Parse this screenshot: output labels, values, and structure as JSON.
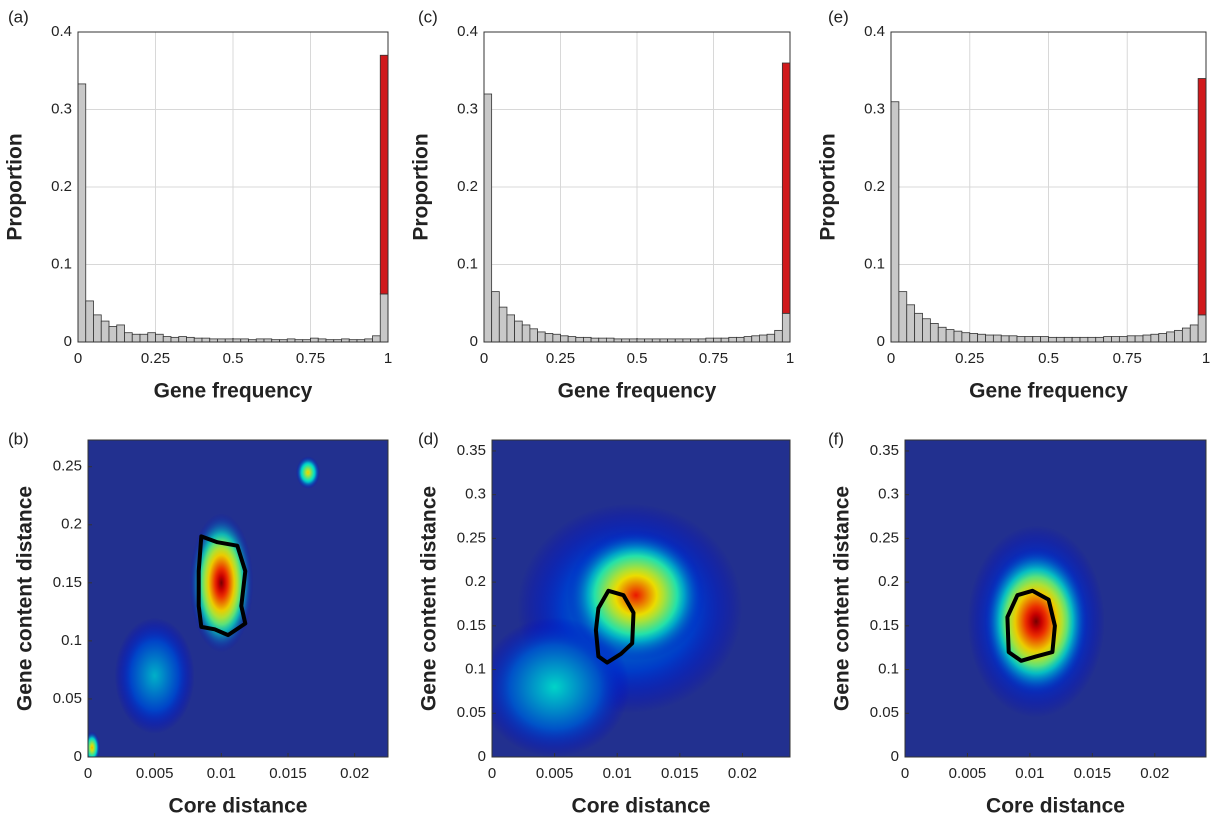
{
  "chart_data": [
    {
      "type": "histogram",
      "label": "(a)",
      "xlabel": "Gene frequency",
      "ylabel": "Proportion",
      "bins": [
        0,
        0.025,
        0.05,
        0.075,
        0.1,
        0.125,
        0.15,
        0.175,
        0.2,
        0.225,
        0.25,
        0.275,
        0.3,
        0.325,
        0.35,
        0.375,
        0.4,
        0.425,
        0.45,
        0.475,
        0.5,
        0.525,
        0.55,
        0.575,
        0.6,
        0.625,
        0.65,
        0.675,
        0.7,
        0.725,
        0.75,
        0.775,
        0.8,
        0.825,
        0.85,
        0.875,
        0.9,
        0.925,
        0.95,
        0.975,
        1
      ],
      "series": [
        {
          "color": "#c8c8c8",
          "values": [
            0.333,
            0.053,
            0.035,
            0.027,
            0.02,
            0.022,
            0.012,
            0.01,
            0.01,
            0.012,
            0.01,
            0.007,
            0.006,
            0.007,
            0.006,
            0.005,
            0.005,
            0.004,
            0.004,
            0.004,
            0.004,
            0.004,
            0.003,
            0.004,
            0.004,
            0.003,
            0.003,
            0.004,
            0.003,
            0.003,
            0.005,
            0.004,
            0.003,
            0.003,
            0.004,
            0.003,
            0.003,
            0.004,
            0.008,
            0.062
          ]
        },
        {
          "color": "#d0191c",
          "values": [
            0,
            0,
            0,
            0,
            0,
            0,
            0,
            0,
            0,
            0,
            0,
            0,
            0,
            0,
            0,
            0,
            0,
            0,
            0,
            0,
            0,
            0,
            0,
            0,
            0,
            0,
            0,
            0,
            0,
            0,
            0,
            0,
            0,
            0,
            0,
            0,
            0,
            0,
            0,
            0.308
          ]
        }
      ],
      "xlim": [
        0,
        1
      ],
      "ylim": [
        0,
        0.4
      ],
      "xticks": [
        0,
        0.25,
        0.5,
        0.75,
        1
      ],
      "yticks": [
        0,
        0.1,
        0.2,
        0.3,
        0.4
      ],
      "grid": true
    },
    {
      "type": "heatmap",
      "label": "(b)",
      "xlabel": "Core distance",
      "ylabel": "Gene content distance",
      "background": "#22308f",
      "peaks": [
        {
          "x": 0.005,
          "y": 0.07,
          "rx": 0.003,
          "ry": 0.05,
          "level": 0.32
        },
        {
          "x": 0.0003,
          "y": 0.008,
          "rx": 0.0006,
          "ry": 0.014,
          "level": 0.7
        },
        {
          "x": 0.0165,
          "y": 0.245,
          "rx": 0.0009,
          "ry": 0.014,
          "level": 0.65
        },
        {
          "x": 0.01,
          "y": 0.15,
          "rx": 0.0024,
          "ry": 0.06,
          "level": 1
        }
      ],
      "contour": {
        "x": [
          0.0085,
          0.0097,
          0.0112,
          0.0118,
          0.0115,
          0.0118,
          0.0105,
          0.0095,
          0.0085,
          0.0083,
          0.0083
        ],
        "y": [
          0.19,
          0.185,
          0.182,
          0.16,
          0.13,
          0.115,
          0.105,
          0.11,
          0.112,
          0.13,
          0.16
        ]
      },
      "xlim": [
        0,
        0.0225
      ],
      "ylim": [
        0,
        0.273
      ],
      "xticks": [
        0,
        0.005,
        0.01,
        0.015,
        0.02
      ],
      "yticks": [
        0,
        0.05,
        0.1,
        0.15,
        0.2,
        0.25
      ]
    },
    {
      "type": "histogram",
      "label": "(c)",
      "xlabel": "Gene frequency",
      "ylabel": "Proportion",
      "bins": [
        0,
        0.025,
        0.05,
        0.075,
        0.1,
        0.125,
        0.15,
        0.175,
        0.2,
        0.225,
        0.25,
        0.275,
        0.3,
        0.325,
        0.35,
        0.375,
        0.4,
        0.425,
        0.45,
        0.475,
        0.5,
        0.525,
        0.55,
        0.575,
        0.6,
        0.625,
        0.65,
        0.675,
        0.7,
        0.725,
        0.75,
        0.775,
        0.8,
        0.825,
        0.85,
        0.875,
        0.9,
        0.925,
        0.95,
        0.975,
        1
      ],
      "series": [
        {
          "color": "#c8c8c8",
          "values": [
            0.32,
            0.065,
            0.045,
            0.035,
            0.027,
            0.022,
            0.017,
            0.013,
            0.011,
            0.01,
            0.008,
            0.007,
            0.006,
            0.006,
            0.005,
            0.005,
            0.005,
            0.004,
            0.004,
            0.004,
            0.004,
            0.004,
            0.004,
            0.004,
            0.004,
            0.004,
            0.004,
            0.004,
            0.004,
            0.005,
            0.005,
            0.005,
            0.006,
            0.006,
            0.007,
            0.008,
            0.009,
            0.01,
            0.015,
            0.037
          ]
        },
        {
          "color": "#d0191c",
          "values": [
            0,
            0,
            0,
            0,
            0,
            0,
            0,
            0,
            0,
            0,
            0,
            0,
            0,
            0,
            0,
            0,
            0,
            0,
            0,
            0,
            0,
            0,
            0,
            0,
            0,
            0,
            0,
            0,
            0,
            0,
            0,
            0,
            0,
            0,
            0,
            0,
            0,
            0,
            0,
            0.323
          ]
        }
      ],
      "xlim": [
        0,
        1
      ],
      "ylim": [
        0,
        0.4
      ],
      "xticks": [
        0,
        0.25,
        0.5,
        0.75,
        1
      ],
      "yticks": [
        0,
        0.1,
        0.2,
        0.3,
        0.4
      ],
      "grid": true
    },
    {
      "type": "heatmap",
      "label": "(d)",
      "xlabel": "Core distance",
      "ylabel": "Gene content distance",
      "background": "#22308f",
      "peaks": [
        {
          "x": 0.011,
          "y": 0.17,
          "rx": 0.009,
          "ry": 0.12,
          "level": 0.3
        },
        {
          "x": 0.005,
          "y": 0.08,
          "rx": 0.006,
          "ry": 0.08,
          "level": 0.36
        },
        {
          "x": 0.0115,
          "y": 0.185,
          "rx": 0.0055,
          "ry": 0.075,
          "level": 0.85
        }
      ],
      "contour": {
        "x": [
          0.0093,
          0.0105,
          0.0113,
          0.0112,
          0.0103,
          0.0092,
          0.0085,
          0.0083,
          0.0085
        ],
        "y": [
          0.19,
          0.185,
          0.165,
          0.13,
          0.118,
          0.108,
          0.115,
          0.145,
          0.17
        ]
      },
      "xlim": [
        0,
        0.0238
      ],
      "ylim": [
        0,
        0.3625
      ],
      "xticks": [
        0,
        0.005,
        0.01,
        0.015,
        0.02
      ],
      "yticks": [
        0,
        0.05,
        0.1,
        0.15,
        0.2,
        0.25,
        0.3,
        0.35
      ]
    },
    {
      "type": "histogram",
      "label": "(e)",
      "xlabel": "Gene frequency",
      "ylabel": "Proportion",
      "bins": [
        0,
        0.025,
        0.05,
        0.075,
        0.1,
        0.125,
        0.15,
        0.175,
        0.2,
        0.225,
        0.25,
        0.275,
        0.3,
        0.325,
        0.35,
        0.375,
        0.4,
        0.425,
        0.45,
        0.475,
        0.5,
        0.525,
        0.55,
        0.575,
        0.6,
        0.625,
        0.65,
        0.675,
        0.7,
        0.725,
        0.75,
        0.775,
        0.8,
        0.825,
        0.85,
        0.875,
        0.9,
        0.925,
        0.95,
        0.975,
        1
      ],
      "series": [
        {
          "color": "#c8c8c8",
          "values": [
            0.31,
            0.065,
            0.048,
            0.037,
            0.03,
            0.024,
            0.019,
            0.016,
            0.014,
            0.012,
            0.011,
            0.01,
            0.009,
            0.009,
            0.008,
            0.008,
            0.007,
            0.007,
            0.007,
            0.007,
            0.006,
            0.006,
            0.006,
            0.006,
            0.006,
            0.006,
            0.006,
            0.007,
            0.007,
            0.007,
            0.008,
            0.008,
            0.009,
            0.01,
            0.011,
            0.013,
            0.015,
            0.018,
            0.022,
            0.035
          ]
        },
        {
          "color": "#d0191c",
          "values": [
            0,
            0,
            0,
            0,
            0,
            0,
            0,
            0,
            0,
            0,
            0,
            0,
            0,
            0,
            0,
            0,
            0,
            0,
            0,
            0,
            0,
            0,
            0,
            0,
            0,
            0,
            0,
            0,
            0,
            0,
            0,
            0,
            0,
            0,
            0,
            0,
            0,
            0,
            0,
            0.305
          ]
        }
      ],
      "xlim": [
        0,
        1
      ],
      "ylim": [
        0,
        0.4
      ],
      "xticks": [
        0,
        0.25,
        0.5,
        0.75,
        1
      ],
      "yticks": [
        0,
        0.1,
        0.2,
        0.3,
        0.4
      ],
      "grid": true
    },
    {
      "type": "heatmap",
      "label": "(f)",
      "xlabel": "Core distance",
      "ylabel": "Gene content distance",
      "background": "#22308f",
      "peaks": [
        {
          "x": 0.0105,
          "y": 0.155,
          "rx": 0.0055,
          "ry": 0.11,
          "level": 0.32
        },
        {
          "x": 0.0105,
          "y": 0.155,
          "rx": 0.0042,
          "ry": 0.085,
          "level": 1
        }
      ],
      "contour": {
        "x": [
          0.009,
          0.0102,
          0.0115,
          0.012,
          0.0118,
          0.0105,
          0.0093,
          0.0083,
          0.0082
        ],
        "y": [
          0.185,
          0.19,
          0.18,
          0.15,
          0.12,
          0.115,
          0.11,
          0.12,
          0.16
        ]
      },
      "xlim": [
        0,
        0.0241
      ],
      "ylim": [
        0,
        0.3625
      ],
      "xticks": [
        0,
        0.005,
        0.01,
        0.015,
        0.02
      ],
      "yticks": [
        0,
        0.05,
        0.1,
        0.15,
        0.2,
        0.25,
        0.3,
        0.35
      ]
    }
  ]
}
